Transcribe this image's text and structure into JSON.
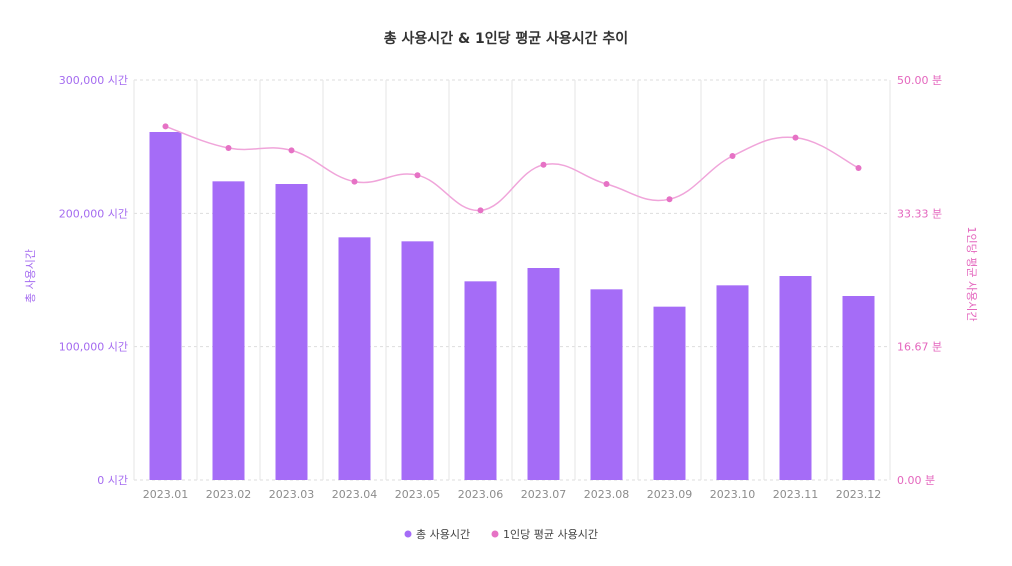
{
  "chart_data": {
    "type": "bar+line",
    "title": "총 사용시간 & 1인당 평균 사용시간 추이",
    "categories": [
      "2023.01",
      "2023.02",
      "2023.03",
      "2023.04",
      "2023.05",
      "2023.06",
      "2023.07",
      "2023.08",
      "2023.09",
      "2023.10",
      "2023.11",
      "2023.12"
    ],
    "series": [
      {
        "name": "총 사용시간",
        "type": "bar",
        "axis": "left",
        "color": "#a56cf7",
        "values": [
          261000,
          224000,
          222000,
          182000,
          179000,
          149000,
          159000,
          143000,
          130000,
          146000,
          153000,
          138000
        ]
      },
      {
        "name": "1인당 평균 사용시간",
        "type": "line",
        "axis": "right",
        "color": "#e672c5",
        "line_color": "#f0a5da",
        "values": [
          44.2,
          41.5,
          41.2,
          37.3,
          38.1,
          33.7,
          39.4,
          37.0,
          35.1,
          40.5,
          42.8,
          39.0
        ]
      }
    ],
    "y_left": {
      "label": "총 사용시간",
      "ylim": [
        0,
        300000
      ],
      "ticks": [
        "0 시간",
        "100,000 시간",
        "200,000 시간",
        "300,000 시간"
      ]
    },
    "y_right": {
      "label": "1인당 평균 사용시간",
      "ylim": [
        0,
        50
      ],
      "ticks": [
        "0.00 분",
        "16.67 분",
        "33.33 분",
        "50.00 분"
      ]
    },
    "grid": true,
    "legend": "bottom-center"
  }
}
